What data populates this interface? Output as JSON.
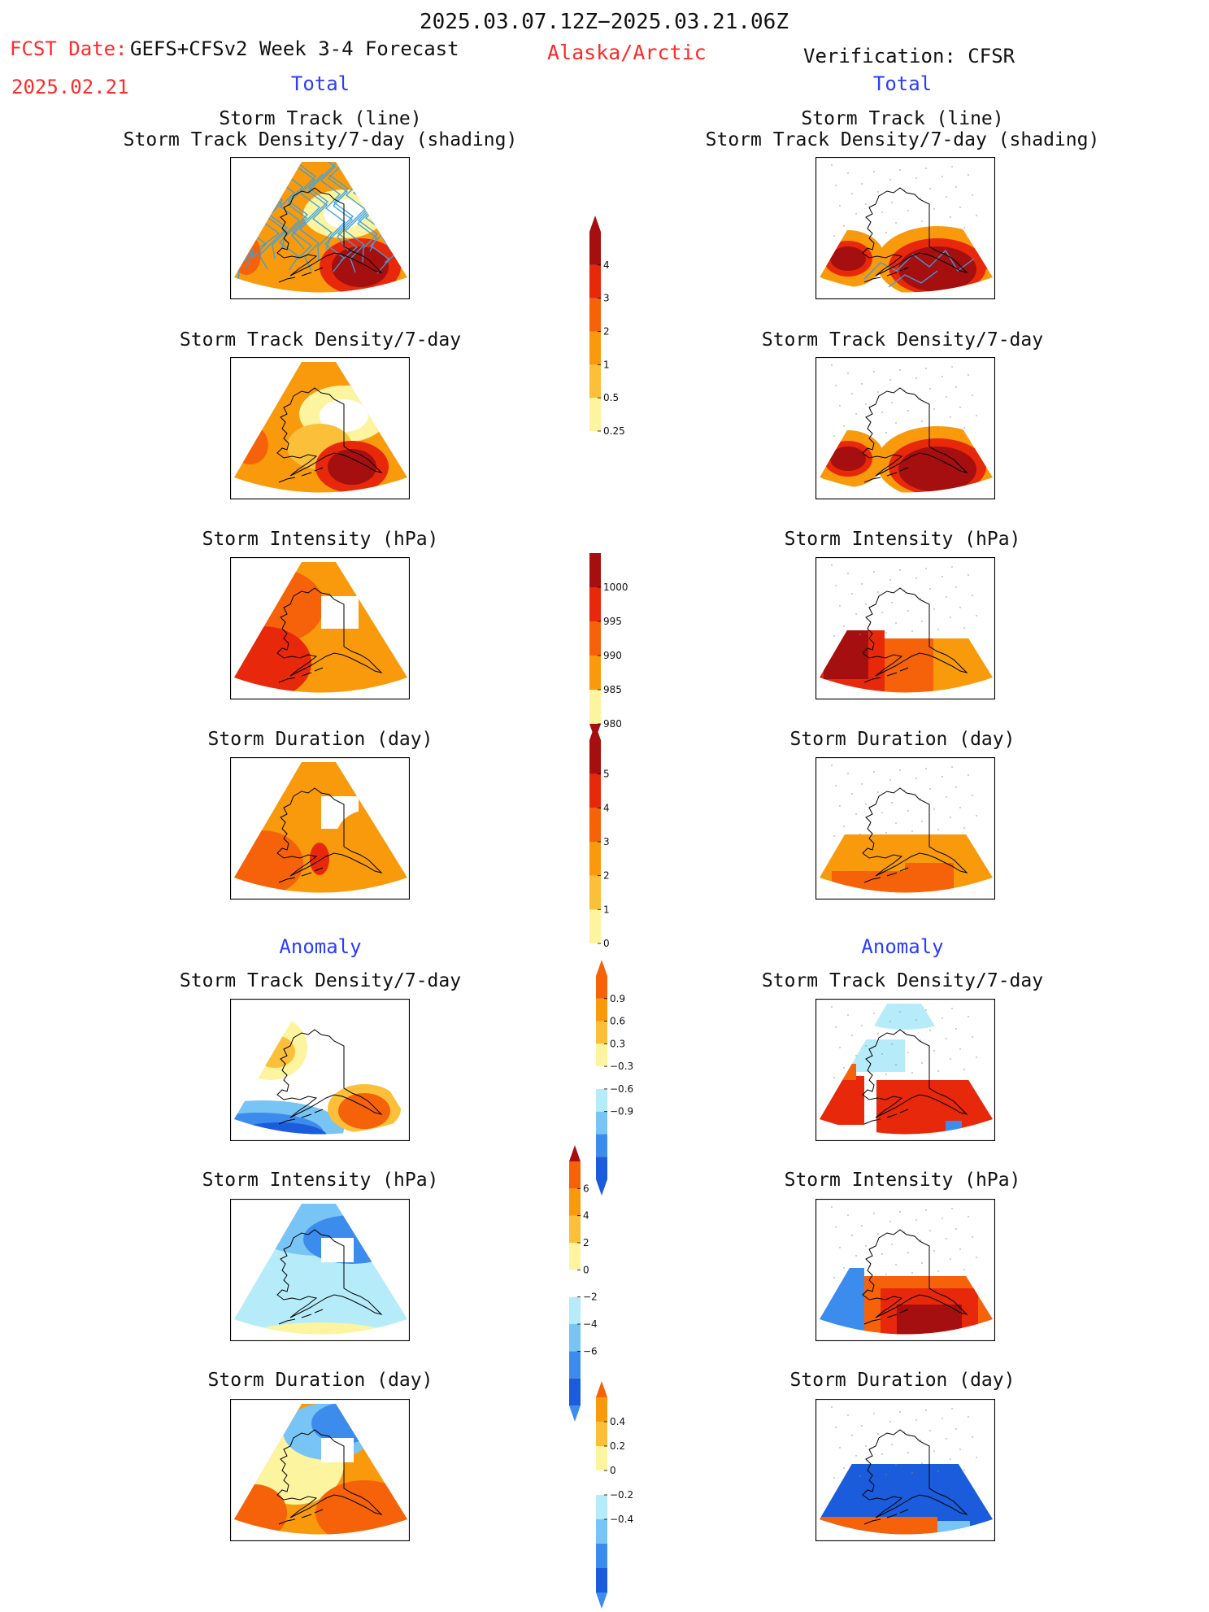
{
  "header": {
    "period": "2025.03.07.12Z−2025.03.21.06Z",
    "fcst_label": "FCST Date:",
    "fcst_date": "2025.02.21",
    "model": "GEFS+CFSv2 Week 3-4 Forecast",
    "region": "Alaska/Arctic",
    "verification": "Verification: CFSR"
  },
  "sections": {
    "total": "Total",
    "anomaly": "Anomaly"
  },
  "titles": {
    "track_line": "Storm Track (line)",
    "track_shading": "Storm Track Density/7-day (shading)",
    "density": "Storm Track Density/7-day",
    "intensity": "Storm Intensity (hPa)",
    "duration": "Storm Duration (day)"
  },
  "colorbars": {
    "density_total": [
      "4",
      "3",
      "2",
      "1",
      "0.5",
      "0.25"
    ],
    "intensity_total": [
      "1000",
      "995",
      "990",
      "985",
      "980"
    ],
    "duration_total": [
      "5",
      "4",
      "3",
      "2",
      "1",
      "0"
    ],
    "density_anom": [
      "0.9",
      "0.6",
      "0.3",
      "−0.3",
      "−0.6",
      "−0.9"
    ],
    "intensity_anom": [
      "6",
      "4",
      "2",
      "0",
      "−2",
      "−4",
      "−6"
    ],
    "duration_anom": [
      "0.4",
      "0.2",
      "0",
      "−0.2",
      "−0.4"
    ]
  },
  "colors": {
    "dark_red": "#a50f0f",
    "red": "#e8280a",
    "red_orange": "#f5620a",
    "orange": "#f89a0c",
    "light_orange": "#fbbf3a",
    "pale_yellow": "#fdf4a0",
    "pale_blue": "#b6ecfa",
    "light_blue": "#78c4f5",
    "blue": "#3c8cee",
    "dark_blue": "#1a5cdc",
    "track_line": "#3aa0e0"
  }
}
